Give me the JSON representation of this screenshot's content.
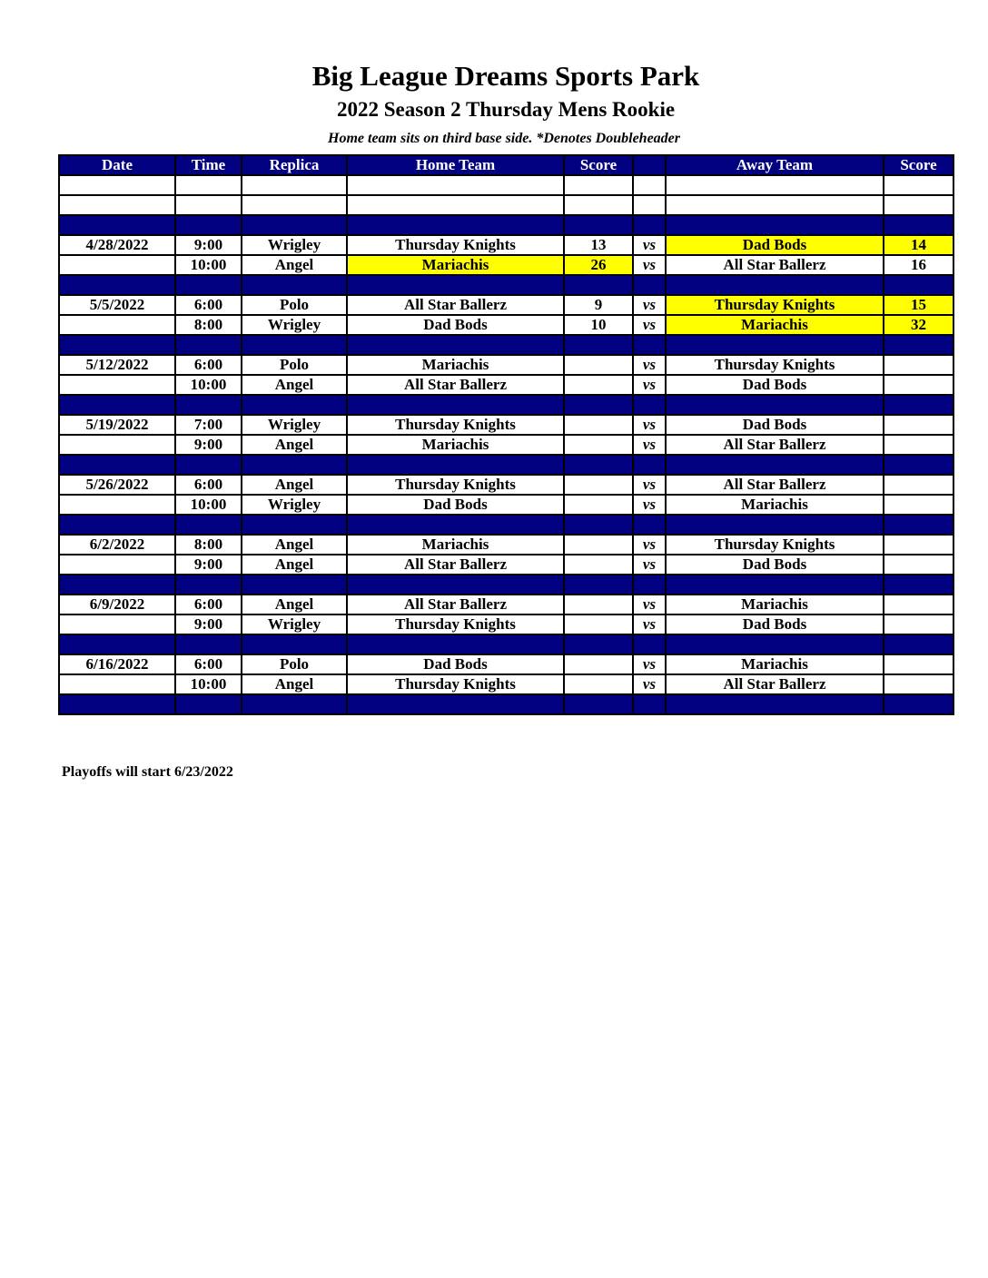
{
  "title": "Big League Dreams Sports Park",
  "subtitle": "2022 Season 2 Thursday Mens Rookie",
  "note": "Home team sits on third base side.  *Denotes Doubleheader",
  "columns": [
    "Date",
    "Time",
    "Replica",
    "Home Team",
    "Score",
    "",
    "Away Team",
    "Score"
  ],
  "vs_label": "vs",
  "highlight_color": "#ffff00",
  "header_color": "#000080",
  "weeks": [
    {
      "games": [
        {
          "date": "4/28/2022",
          "time": "9:00",
          "field": "Wrigley",
          "home": "Thursday Knights",
          "home_score": "13",
          "away": "Dad Bods",
          "away_score": "14",
          "winner": "away"
        },
        {
          "date": "",
          "time": "10:00",
          "field": "Angel",
          "home": "Mariachis",
          "home_score": "26",
          "away": "All Star Ballerz",
          "away_score": "16",
          "winner": "home"
        }
      ]
    },
    {
      "games": [
        {
          "date": "5/5/2022",
          "time": "6:00",
          "field": "Polo",
          "home": "All Star Ballerz",
          "home_score": "9",
          "away": "Thursday Knights",
          "away_score": "15",
          "winner": "away"
        },
        {
          "date": "",
          "time": "8:00",
          "field": "Wrigley",
          "home": "Dad Bods",
          "home_score": "10",
          "away": "Mariachis",
          "away_score": "32",
          "winner": "away"
        }
      ]
    },
    {
      "games": [
        {
          "date": "5/12/2022",
          "time": "6:00",
          "field": "Polo",
          "home": "Mariachis",
          "home_score": "",
          "away": "Thursday Knights",
          "away_score": ""
        },
        {
          "date": "",
          "time": "10:00",
          "field": "Angel",
          "home": "All Star Ballerz",
          "home_score": "",
          "away": "Dad Bods",
          "away_score": ""
        }
      ]
    },
    {
      "games": [
        {
          "date": "5/19/2022",
          "time": "7:00",
          "field": "Wrigley",
          "home": "Thursday Knights",
          "home_score": "",
          "away": "Dad Bods",
          "away_score": ""
        },
        {
          "date": "",
          "time": "9:00",
          "field": "Angel",
          "home": "Mariachis",
          "home_score": "",
          "away": "All Star Ballerz",
          "away_score": ""
        }
      ]
    },
    {
      "games": [
        {
          "date": "5/26/2022",
          "time": "6:00",
          "field": "Angel",
          "home": "Thursday Knights",
          "home_score": "",
          "away": "All Star Ballerz",
          "away_score": ""
        },
        {
          "date": "",
          "time": "10:00",
          "field": "Wrigley",
          "home": "Dad Bods",
          "home_score": "",
          "away": "Mariachis",
          "away_score": ""
        }
      ]
    },
    {
      "games": [
        {
          "date": "6/2/2022",
          "time": "8:00",
          "field": "Angel",
          "home": "Mariachis",
          "home_score": "",
          "away": "Thursday Knights",
          "away_score": ""
        },
        {
          "date": "",
          "time": "9:00",
          "field": "Angel",
          "home": "All Star Ballerz",
          "home_score": "",
          "away": "Dad Bods",
          "away_score": ""
        }
      ]
    },
    {
      "games": [
        {
          "date": "6/9/2022",
          "time": "6:00",
          "field": "Angel",
          "home": "All Star Ballerz",
          "home_score": "",
          "away": "Mariachis",
          "away_score": ""
        },
        {
          "date": "",
          "time": "9:00",
          "field": "Wrigley",
          "home": "Thursday Knights",
          "home_score": "",
          "away": "Dad Bods",
          "away_score": ""
        }
      ]
    },
    {
      "games": [
        {
          "date": "6/16/2022",
          "time": "6:00",
          "field": "Polo",
          "home": "Dad Bods",
          "home_score": "",
          "away": "Mariachis",
          "away_score": ""
        },
        {
          "date": "",
          "time": "10:00",
          "field": "Angel",
          "home": "Thursday Knights",
          "home_score": "",
          "away": "All Star Ballerz",
          "away_score": ""
        }
      ]
    }
  ],
  "footer": "Playoffs will start 6/23/2022"
}
